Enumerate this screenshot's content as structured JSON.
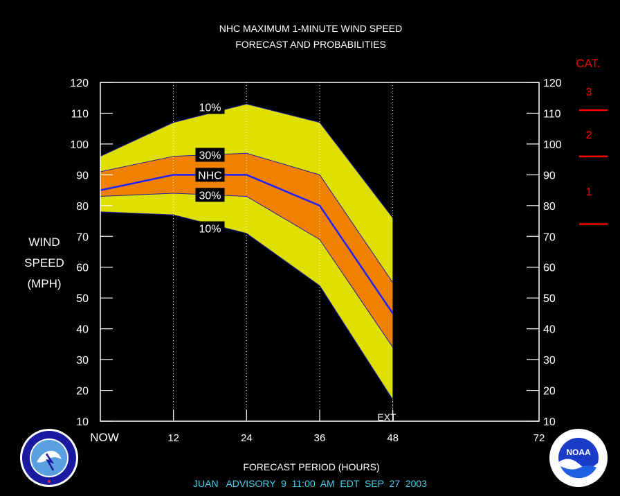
{
  "title": {
    "line1": "NHC MAXIMUM 1-MINUTE WIND SPEED",
    "line2": "FORECAST AND PROBABILITIES"
  },
  "y_axis_label": [
    "WIND",
    "SPEED",
    "(MPH)"
  ],
  "x_axis_label": "FORECAST PERIOD (HOURS)",
  "footer": "JUAN   ADVISORY  9  11:00  AM  EDT  SEP  27  2003",
  "category_scale": {
    "title": "CAT.",
    "labels": [
      "3",
      "2",
      "1"
    ],
    "thresholds": [
      111,
      96,
      74
    ]
  },
  "ext_label": "EXT",
  "band_labels": {
    "upper10": "10%",
    "upper30": "30%",
    "nhc": "NHC",
    "lower30": "30%",
    "lower10": "10%"
  },
  "colors": {
    "background": "#000000",
    "outer_band": "#e0e000",
    "inner_band": "#f08000",
    "nhc_line": "#2020ff",
    "band_edge": "#2020a0",
    "text": "#ffffff",
    "category": "#ff0000",
    "footer": "#40d0f0"
  },
  "chart_data": {
    "type": "area",
    "x": [
      0,
      12,
      24,
      36,
      48
    ],
    "x_ticks": [
      0,
      12,
      24,
      36,
      48,
      72
    ],
    "x_tick_labels": [
      "NOW",
      "12",
      "24",
      "36",
      "48",
      "72"
    ],
    "xlim": [
      0,
      72
    ],
    "ylim": [
      10,
      120
    ],
    "y_ticks": [
      10,
      20,
      30,
      40,
      50,
      60,
      70,
      80,
      90,
      100,
      110,
      120
    ],
    "vertical_grid_at": [
      12,
      24,
      36,
      48
    ],
    "series": [
      {
        "name": "10%",
        "values": [
          96,
          107,
          113,
          107,
          76
        ]
      },
      {
        "name": "30%",
        "values": [
          91,
          96,
          97,
          90,
          55
        ]
      },
      {
        "name": "NHC",
        "values": [
          85,
          90,
          90,
          80,
          45
        ]
      },
      {
        "name": "30%",
        "values": [
          83,
          84,
          83,
          69,
          34
        ]
      },
      {
        "name": "10%",
        "values": [
          78,
          77,
          71,
          54,
          17
        ]
      }
    ]
  }
}
